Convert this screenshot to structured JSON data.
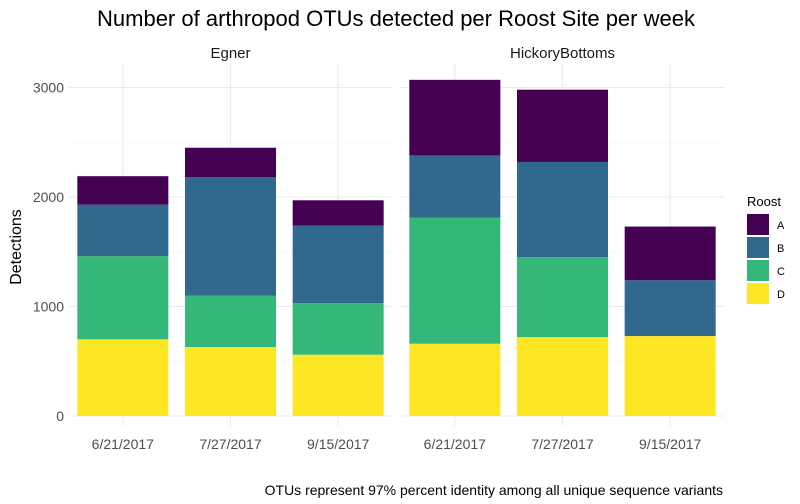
{
  "chart_data": {
    "type": "bar",
    "stacked": true,
    "title": "Number of arthropod OTUs detected per Roost Site per week",
    "ylabel": "Detections",
    "xlabel": "",
    "caption": "OTUs represent 97% percent identity among all unique sequence variants",
    "ylim": [
      0,
      3200
    ],
    "yticks": [
      0,
      1000,
      2000,
      3000
    ],
    "grid": true,
    "legend": {
      "title": "Roost",
      "placement": "right",
      "entries": [
        {
          "name": "A",
          "color": "#440154"
        },
        {
          "name": "B",
          "color": "#31688e"
        },
        {
          "name": "C",
          "color": "#35b779"
        },
        {
          "name": "D",
          "color": "#fde725"
        }
      ]
    },
    "facets": [
      {
        "name": "Egner",
        "categories": [
          "6/21/2017",
          "7/27/2017",
          "9/15/2017"
        ],
        "series": [
          {
            "name": "A",
            "values": [
              260,
              270,
              230
            ]
          },
          {
            "name": "B",
            "values": [
              470,
              1080,
              710
            ]
          },
          {
            "name": "C",
            "values": [
              760,
              470,
              470
            ]
          },
          {
            "name": "D",
            "values": [
              700,
              630,
              560
            ]
          }
        ]
      },
      {
        "name": "HickoryBottoms",
        "categories": [
          "6/21/2017",
          "7/27/2017",
          "9/15/2017"
        ],
        "series": [
          {
            "name": "A",
            "values": [
              690,
              660,
              490
            ]
          },
          {
            "name": "B",
            "values": [
              570,
              870,
              510
            ]
          },
          {
            "name": "C",
            "values": [
              1150,
              730,
              0
            ]
          },
          {
            "name": "D",
            "values": [
              660,
              720,
              730
            ]
          }
        ]
      }
    ]
  }
}
